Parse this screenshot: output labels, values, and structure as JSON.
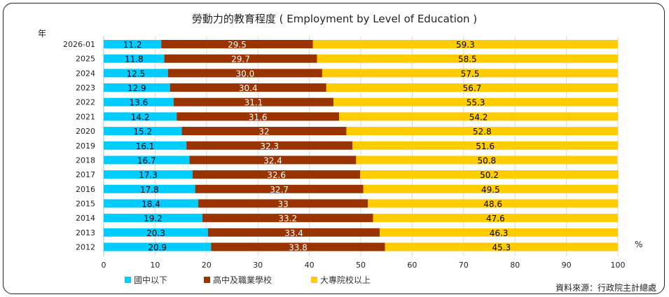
{
  "chart_data": {
    "type": "bar",
    "orientation": "horizontal",
    "stacked": true,
    "title": "勞動力的教育程度 ( Employment by Level of Education )",
    "ylabel": "年",
    "xunit": "%",
    "xlim": [
      0,
      100
    ],
    "xticks": [
      0,
      10,
      20,
      30,
      40,
      50,
      60,
      70,
      80,
      90,
      100
    ],
    "grid": true,
    "legend_position": "bottom",
    "categories": [
      "2026-01",
      "2025",
      "2024",
      "2023",
      "2022",
      "2021",
      "2020",
      "2019",
      "2018",
      "2017",
      "2016",
      "2015",
      "2014",
      "2013",
      "2012"
    ],
    "series": [
      {
        "name": "國中以下",
        "color": "#00CCFF",
        "label_color": "#000000",
        "values": [
          11.2,
          11.8,
          12.5,
          12.9,
          13.6,
          14.2,
          15.2,
          16.1,
          16.7,
          17.3,
          17.8,
          18.4,
          19.2,
          20.3,
          20.9
        ],
        "labels": [
          "11.2",
          "11.8",
          "12.5",
          "12.9",
          "13.6",
          "14.2",
          "15.2",
          "16.1",
          "16.7",
          "17.3",
          "17.8",
          "18.4",
          "19.2",
          "20.3",
          "20.9"
        ]
      },
      {
        "name": "高中及職業學校",
        "color": "#993300",
        "label_color": "#FFFFFF",
        "values": [
          29.5,
          29.7,
          30.0,
          30.4,
          31.1,
          31.6,
          32,
          32.3,
          32.4,
          32.6,
          32.7,
          33,
          33.2,
          33.4,
          33.8
        ],
        "labels": [
          "29.5",
          "29.7",
          "30.0",
          "30.4",
          "31.1",
          "31.6",
          "32",
          "32.3",
          "32.4",
          "32.6",
          "32.7",
          "33",
          "33.2",
          "33.4",
          "33.8"
        ]
      },
      {
        "name": "大專院校以上",
        "color": "#FFCC00",
        "label_color": "#000000",
        "values": [
          59.3,
          58.5,
          57.5,
          56.7,
          55.3,
          54.2,
          52.8,
          51.6,
          50.8,
          50.2,
          49.5,
          48.6,
          47.6,
          46.3,
          45.3
        ],
        "labels": [
          "59.3",
          "58.5",
          "57.5",
          "56.7",
          "55.3",
          "54.2",
          "52.8",
          "51.6",
          "50.8",
          "50.2",
          "49.5",
          "48.6",
          "47.6",
          "46.3",
          "45.3"
        ]
      }
    ],
    "source": "資料來源：行政院主計總處"
  }
}
